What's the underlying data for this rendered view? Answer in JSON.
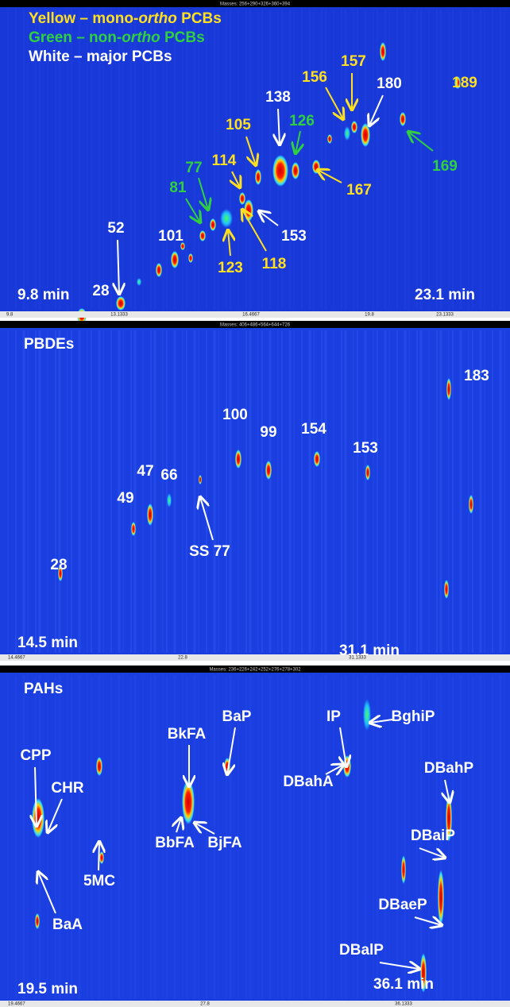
{
  "panels": [
    {
      "header": "Masses: 256+290+326+360+394",
      "legend": [
        {
          "text": "Yellow – mono-",
          "em": "ortho",
          "tail": " PCBs"
        },
        {
          "text": "Green – non-",
          "em": "ortho",
          "tail": " PCBs"
        },
        {
          "text": "White – major PCBs"
        }
      ],
      "labels": [
        "189",
        "157",
        "156",
        "180",
        "169",
        "138",
        "126",
        "105",
        "114",
        "167",
        "77",
        "81",
        "153",
        "123",
        "118",
        "101",
        "52",
        "28"
      ],
      "time_start": "9.8 min",
      "time_end": "23.1 min",
      "axis_ticks": [
        "9.8",
        "13.1333",
        "16.4667",
        "19.8",
        "23.1333"
      ]
    },
    {
      "header": "Masses: 406+486+564+644+726",
      "title": "PBDEs",
      "labels": [
        "183",
        "100",
        "99",
        "154",
        "153",
        "47",
        "66",
        "49",
        "SS 77",
        "28"
      ],
      "time_start": "14.5 min",
      "time_end": "31.1 min",
      "axis_ticks": [
        "14.4667",
        "22.8",
        "31.1333"
      ]
    },
    {
      "header": "Masses: 236+226+242+252+276+278+302",
      "title": "PAHs",
      "labels": [
        "BaP",
        "BkFA",
        "IP",
        "BghiP",
        "CPP",
        "CHR",
        "DBahP",
        "DBahA",
        "BbFA",
        "BjFA",
        "DBaiP",
        "5MC",
        "DBaeP",
        "BaA",
        "DBalP"
      ],
      "time_start": "19.5 min",
      "time_end": "36.1 min",
      "axis_ticks": [
        "19.4667",
        "27.8",
        "36.1333"
      ]
    }
  ]
}
